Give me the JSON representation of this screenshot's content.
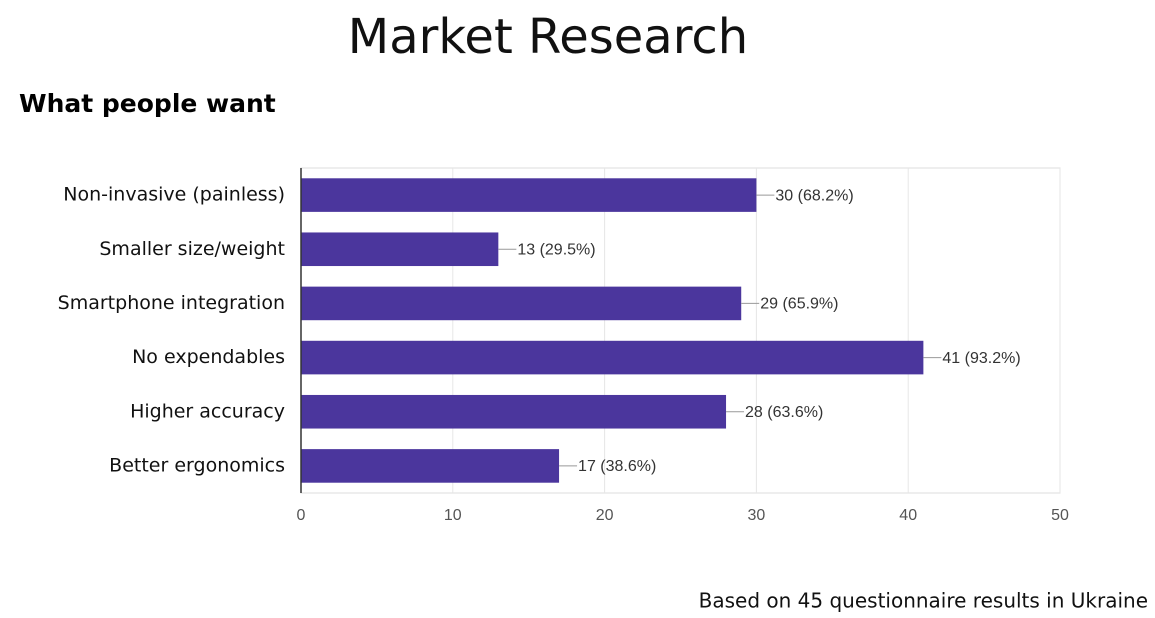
{
  "slide": {
    "title": "Market Research",
    "note": "Based on 45 questionnaire results in Ukraine"
  },
  "chart_data": {
    "type": "hbar",
    "title": "What people want",
    "categories": [
      "Non-invasive (painless)",
      "Smaller size/weight",
      "Smartphone integration",
      "No expendables",
      "Higher accuracy",
      "Better ergonomics"
    ],
    "values": [
      30,
      13,
      29,
      41,
      28,
      17
    ],
    "value_labels": [
      "30 (68.2%)",
      "13 (29.5%)",
      "29 (65.9%)",
      "41 (93.2%)",
      "28 (63.6%)",
      "17 (38.6%)"
    ],
    "color": "#4b369d",
    "xlim": [
      0,
      50
    ],
    "xticks": [
      0,
      10,
      20,
      30,
      40,
      50
    ],
    "grid": true
  }
}
